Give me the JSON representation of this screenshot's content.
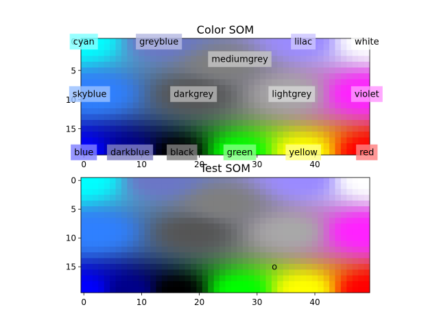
{
  "chart_data": [
    {
      "type": "heatmap",
      "title": "Color SOM",
      "grid": {
        "rows": 20,
        "cols": 50
      },
      "xticks": [
        0,
        10,
        20,
        30,
        40
      ],
      "yticks": [
        0,
        5,
        10,
        15
      ],
      "xlim": [
        -0.5,
        49.5
      ],
      "ylim": [
        19.5,
        -0.5
      ],
      "colormap_anchors": [
        {
          "x": 0,
          "y": 0,
          "color": "#00ffff"
        },
        {
          "x": 13,
          "y": 0,
          "color": "#6b76c6"
        },
        {
          "x": 24,
          "y": 4,
          "color": "#7f7f7f"
        },
        {
          "x": 38,
          "y": 0,
          "color": "#9a8aff"
        },
        {
          "x": 49,
          "y": 0,
          "color": "#ffffff"
        },
        {
          "x": 2,
          "y": 9,
          "color": "#2f80ff"
        },
        {
          "x": 19,
          "y": 9,
          "color": "#555555"
        },
        {
          "x": 36,
          "y": 9,
          "color": "#a8a8a8"
        },
        {
          "x": 48,
          "y": 9,
          "color": "#ff22ff"
        },
        {
          "x": 0,
          "y": 19,
          "color": "#0000ff"
        },
        {
          "x": 8,
          "y": 19,
          "color": "#00008a"
        },
        {
          "x": 16,
          "y": 19,
          "color": "#000000"
        },
        {
          "x": 27,
          "y": 19,
          "color": "#00ff00"
        },
        {
          "x": 38,
          "y": 19,
          "color": "#ffff00"
        },
        {
          "x": 49,
          "y": 19,
          "color": "#ff0000"
        }
      ],
      "annotations": [
        {
          "text": "cyan",
          "x": 0,
          "y": 0,
          "box_color": "#80ffff"
        },
        {
          "text": "greyblue",
          "x": 13,
          "y": 0,
          "box_color": "#b4b8e2"
        },
        {
          "text": "lilac",
          "x": 38,
          "y": 0,
          "box_color": "#ccc4ff"
        },
        {
          "text": "white",
          "x": 49,
          "y": 0,
          "box_color": "#ffffff"
        },
        {
          "text": "mediumgrey",
          "x": 27,
          "y": 3,
          "box_color": "#c4c4c4"
        },
        {
          "text": "skyblue",
          "x": 1,
          "y": 9,
          "box_color": "#98c0ff"
        },
        {
          "text": "darkgrey",
          "x": 19,
          "y": 9,
          "box_color": "#b4b4b4"
        },
        {
          "text": "lightgrey",
          "x": 36,
          "y": 9,
          "box_color": "#d6d6d6"
        },
        {
          "text": "violet",
          "x": 49,
          "y": 9,
          "box_color": "#ff96ff"
        },
        {
          "text": "blue",
          "x": 0,
          "y": 19,
          "box_color": "#8080ff"
        },
        {
          "text": "darkblue",
          "x": 8,
          "y": 19,
          "box_color": "#8080c4"
        },
        {
          "text": "black",
          "x": 17,
          "y": 19,
          "box_color": "#808080"
        },
        {
          "text": "green",
          "x": 27,
          "y": 19,
          "box_color": "#80ff80"
        },
        {
          "text": "yellow",
          "x": 38,
          "y": 19,
          "box_color": "#ffff80"
        },
        {
          "text": "red",
          "x": 49,
          "y": 19,
          "box_color": "#ff8080"
        }
      ]
    },
    {
      "type": "heatmap",
      "title": "Test SOM",
      "grid": {
        "rows": 20,
        "cols": 50
      },
      "xticks": [
        0,
        10,
        20,
        30,
        40
      ],
      "yticks": [
        0,
        5,
        10,
        15
      ],
      "xlim": [
        -0.5,
        49.5
      ],
      "ylim": [
        19.5,
        -0.5
      ],
      "annotations": [
        {
          "text": "o",
          "x": 33,
          "y": 15,
          "box_color": null
        }
      ]
    }
  ]
}
